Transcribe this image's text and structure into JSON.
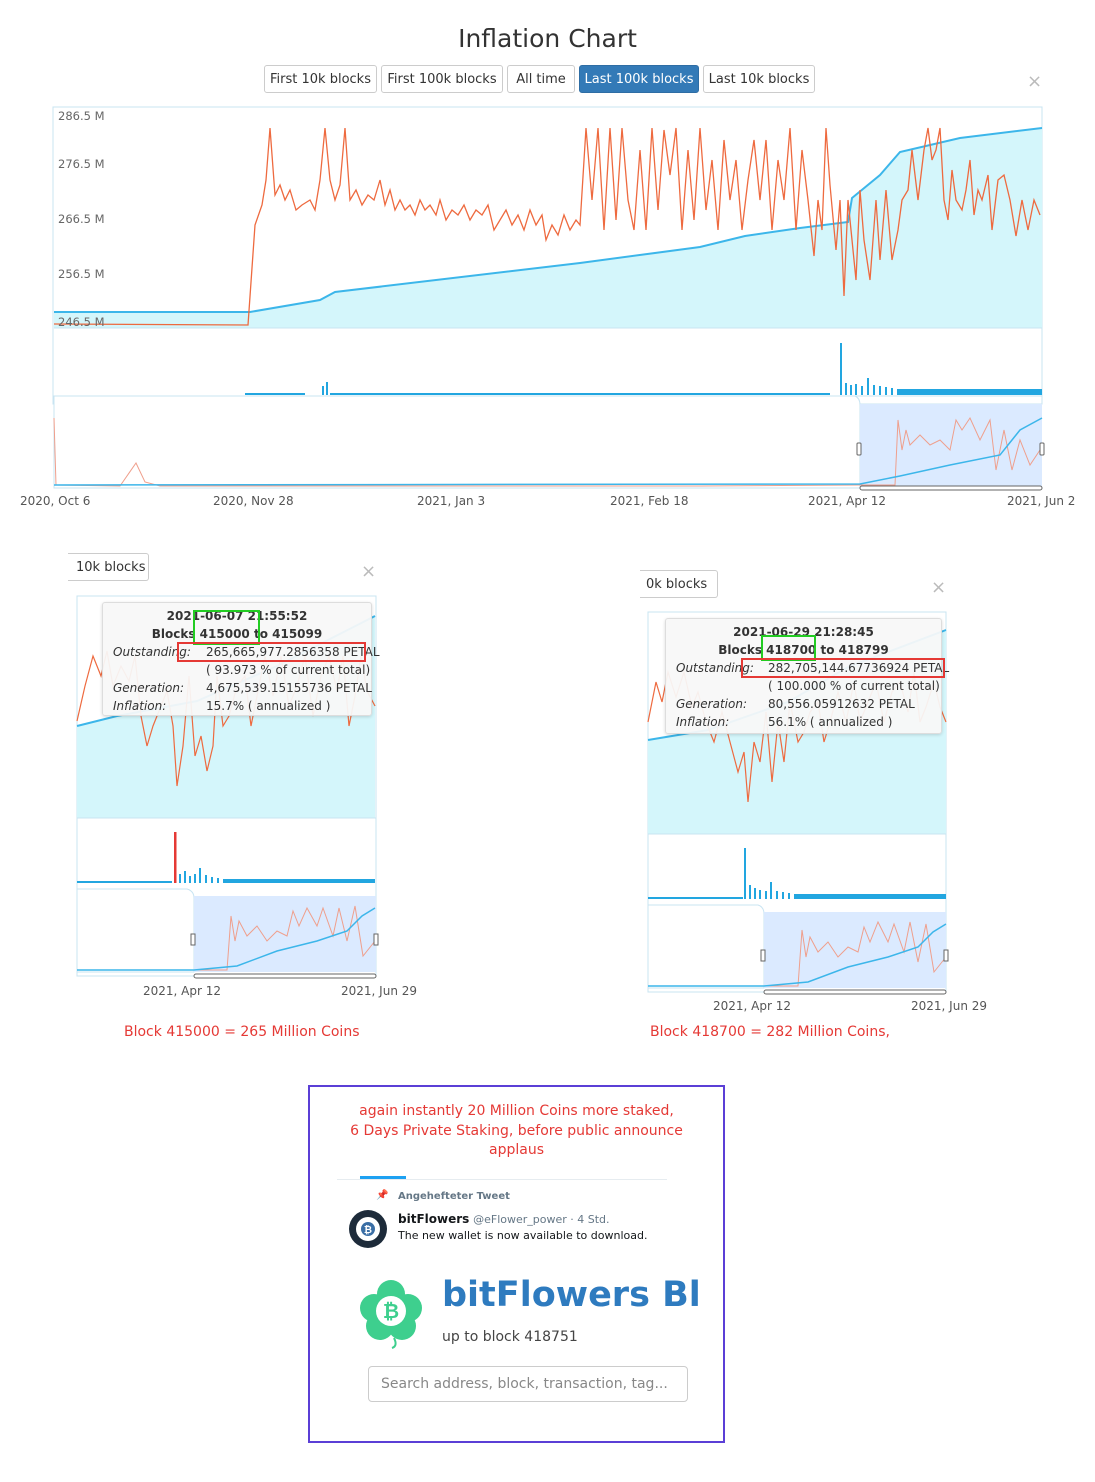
{
  "main_chart": {
    "title": "Inflation Chart",
    "buttons": [
      {
        "label": "First 10k blocks",
        "active": false
      },
      {
        "label": "First 100k blocks",
        "active": false
      },
      {
        "label": "All time",
        "active": false
      },
      {
        "label": "Last 100k blocks",
        "active": true
      },
      {
        "label": "Last 10k blocks",
        "active": false
      }
    ],
    "close_icon": "×",
    "y_ticks": [
      "286.5 M",
      "276.5 M",
      "266.5 M",
      "256.5 M",
      "246.5 M"
    ],
    "x_ticks": [
      "2020, Oct 6",
      "2020, Nov 28",
      "2021, Jan 3",
      "2021, Feb 18",
      "2021, Apr 12",
      "2021, Jun 2"
    ],
    "colors": {
      "supply_line": "#3cb6ea",
      "supply_fill": "#d4f6fb",
      "inflation_line": "#ee6a3f",
      "navigator_fill": "#dbeaff",
      "bars": "#22a6e0"
    }
  },
  "snapshot_left": {
    "button_label": "10k blocks",
    "close_icon": "×",
    "tooltip": {
      "datetime": "2021-06-07 21:55:52",
      "blocks": "Blocks 415000 to 415099",
      "outstanding_label": "Outstanding:",
      "outstanding_value": "265,665,977.2856358 PETAL",
      "pct": "( 93.973 % of current total)",
      "generation_label": "Generation:",
      "generation_value": "4,675,539.15155736 PETAL",
      "inflation_label": "Inflation:",
      "inflation_value": "15.7% ( annualized )"
    },
    "x_ticks": [
      "2021, Apr 12",
      "2021, Jun 29"
    ],
    "caption": "Block 415000 = 265 Million Coins"
  },
  "snapshot_right": {
    "button_label": "0k blocks",
    "close_icon": "×",
    "tooltip": {
      "datetime": "2021-06-29 21:28:45",
      "blocks": "Blocks 418700 to 418799",
      "outstanding_label": "Outstanding:",
      "outstanding_value": "282,705,144.67736924 PETAL",
      "pct": "( 100.000 % of current total)",
      "generation_label": "Generation:",
      "generation_value": "80,556.05912632 PETAL",
      "inflation_label": "Inflation:",
      "inflation_value": "56.1% ( annualized )"
    },
    "x_ticks": [
      "2021, Apr 12",
      "2021, Jun 29"
    ],
    "caption": "Block  418700 = 282 Million Coins,"
  },
  "panel": {
    "note_lines": [
      "again instantly 20 Million Coins more staked,",
      "6 Days Private Staking,  before public announce",
      "applaus"
    ],
    "pinned_label": "Angehefteter Tweet",
    "tweet_name": "bitFlowers",
    "tweet_handle": "@eFlower_power · 4 Std.",
    "tweet_text": "The new wallet is now available to download.",
    "brand_title": "bitFlowers Bl",
    "brand_sub": "up to block 418751",
    "search_placeholder": "Search address, block, transaction, tag..."
  }
}
